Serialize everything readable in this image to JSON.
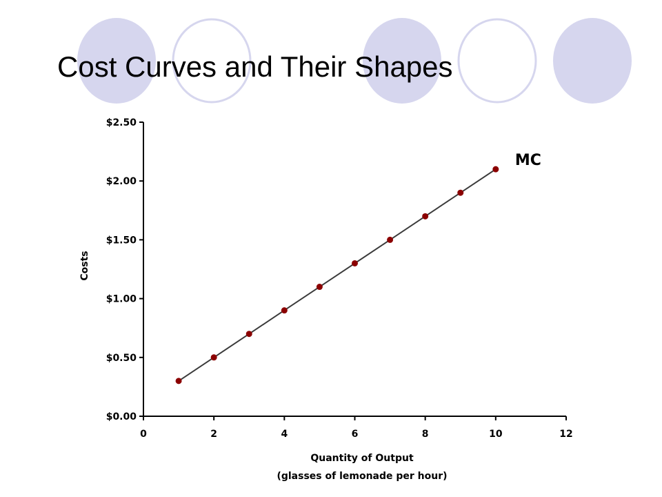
{
  "title": "Cost Curves and Their Shapes",
  "colors": {
    "decor_filled": "#d6d6ee",
    "decor_outline": "#d6d6ee",
    "series_line": "#3a3a3a",
    "series_marker": "#8b0000"
  },
  "decor": {
    "circles": [
      {
        "style": "filled"
      },
      {
        "style": "outline"
      },
      {
        "style": "filled"
      },
      {
        "style": "outline"
      },
      {
        "style": "filled"
      }
    ]
  },
  "chart_data": {
    "type": "line",
    "title": "",
    "xlabel": "Quantity of Output",
    "xlabel_line2": "(glasses of lemonade per hour)",
    "ylabel": "Costs",
    "xlim": [
      0,
      12
    ],
    "ylim": [
      0,
      2.5
    ],
    "xticks": [
      0,
      2,
      4,
      6,
      8,
      10,
      12
    ],
    "xtick_labels": [
      "0",
      "2",
      "4",
      "6",
      "8",
      "10",
      "12"
    ],
    "yticks": [
      0,
      0.5,
      1,
      1.5,
      2,
      2.5
    ],
    "ytick_labels": [
      "$0.00",
      "$0.50",
      "$1.00",
      "$1.50",
      "$2.00",
      "$2.50"
    ],
    "grid": false,
    "legend": "none",
    "series": [
      {
        "name": "MC",
        "x": [
          1,
          2,
          3,
          4,
          5,
          6,
          7,
          8,
          9,
          10
        ],
        "y": [
          0.3,
          0.5,
          0.7,
          0.9,
          1.1,
          1.3,
          1.5,
          1.7,
          1.9,
          2.1
        ]
      }
    ]
  }
}
